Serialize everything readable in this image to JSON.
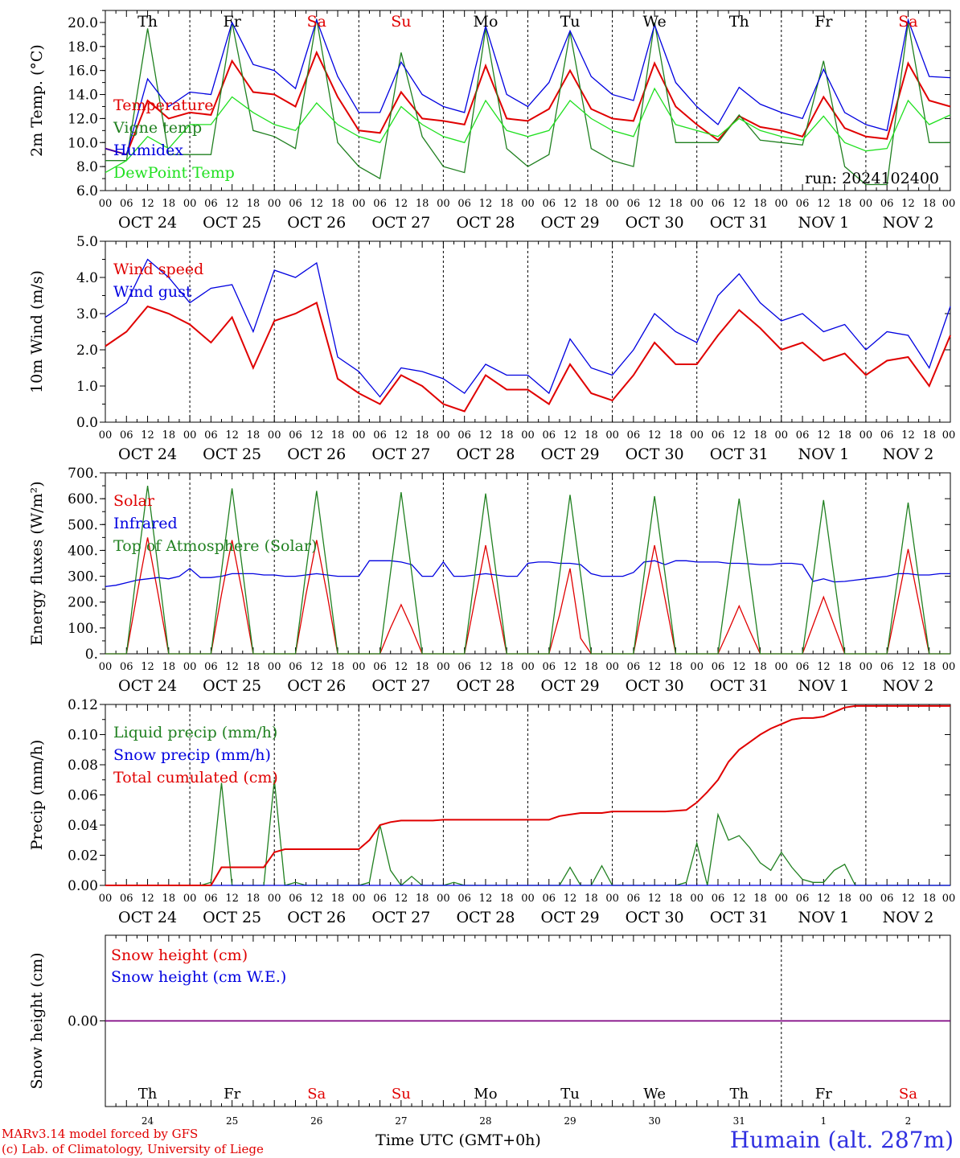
{
  "days": [
    "Th",
    "Fr",
    "Sa",
    "Su",
    "Mo",
    "Tu",
    "We",
    "Th",
    "Fr",
    "Sa"
  ],
  "day_colors": [
    "#000000",
    "#000000",
    "#e00000",
    "#e00000",
    "#000000",
    "#000000",
    "#000000",
    "#000000",
    "#000000",
    "#e00000"
  ],
  "dates": [
    "OCT 24",
    "OCT 25",
    "OCT 26",
    "OCT 27",
    "OCT 28",
    "OCT 29",
    "OCT 30",
    "OCT 31",
    "NOV  1",
    "NOV  2"
  ],
  "day_numbers": [
    "24",
    "25",
    "26",
    "27",
    "28",
    "29",
    "30",
    "31",
    "1",
    "2"
  ],
  "hour_ticks": [
    "00",
    "06",
    "12",
    "18"
  ],
  "hour_tick_end": "00",
  "run_label": "run: 2024102400",
  "footer": {
    "model": "MARv3.14 model forced by GFS",
    "lab": "(c) Lab. of Climatology, University of Liege",
    "time_label": "Time UTC (GMT+0h)",
    "station": "Humain (alt. 287m)"
  },
  "colors": {
    "red": "#e00000",
    "green": "#208020",
    "blue": "#0000e0",
    "lightgreen": "#20e020",
    "purple": "#800080"
  },
  "chart_data": [
    {
      "type": "line",
      "ylabel": "2m Temp. (°C)",
      "ylim": [
        6,
        21
      ],
      "yticks": [
        "6.0",
        "8.0",
        "10.0",
        "12.0",
        "14.0",
        "16.0",
        "18.0",
        "20.0"
      ],
      "hours": [
        0,
        6,
        12,
        18,
        24,
        30,
        36,
        42,
        48,
        54,
        60,
        66,
        72,
        78,
        84,
        90,
        96,
        102,
        108,
        114,
        120,
        126,
        132,
        138,
        144,
        150,
        156,
        162,
        168,
        174,
        180,
        186,
        192,
        198,
        204,
        210,
        216,
        222,
        228,
        234,
        240
      ],
      "series": [
        {
          "name": "Temperature",
          "color": "#e00000",
          "values": [
            9.5,
            9.0,
            13.5,
            12.0,
            12.5,
            12.3,
            16.8,
            14.2,
            14.0,
            13.0,
            17.5,
            13.8,
            11.0,
            10.8,
            14.2,
            12.0,
            11.8,
            11.5,
            16.4,
            12.0,
            11.8,
            12.8,
            16.0,
            12.8,
            12.0,
            11.8,
            16.6,
            13.0,
            11.5,
            10.2,
            12.2,
            11.3,
            11.0,
            10.5,
            13.8,
            11.2,
            10.5,
            10.3,
            16.6,
            13.5,
            13.0
          ]
        },
        {
          "name": "Vigne temp",
          "color": "#208020",
          "values": [
            8.5,
            8.5,
            19.5,
            9.0,
            9.0,
            9.0,
            20.0,
            11.0,
            10.5,
            9.5,
            20.3,
            10.0,
            8.0,
            7.0,
            17.5,
            10.5,
            8.0,
            7.5,
            19.5,
            9.5,
            8.0,
            9.0,
            19.2,
            9.5,
            8.5,
            8.0,
            20.0,
            10.0,
            10.0,
            10.0,
            12.3,
            10.2,
            10.0,
            9.8,
            16.8,
            8.0,
            6.5,
            6.5,
            20.0,
            10.0,
            10.0
          ]
        },
        {
          "name": "Humidex",
          "color": "#0000e0",
          "values": [
            9.5,
            9.0,
            15.3,
            13.0,
            14.2,
            14.0,
            20.0,
            16.5,
            16.0,
            14.5,
            20.2,
            15.5,
            12.5,
            12.5,
            16.7,
            14.0,
            13.0,
            12.5,
            19.7,
            14.0,
            13.0,
            15.0,
            19.3,
            15.5,
            14.0,
            13.5,
            19.8,
            15.0,
            13.0,
            11.5,
            14.6,
            13.2,
            12.5,
            12.0,
            16.1,
            12.5,
            11.5,
            11.0,
            20.2,
            15.5,
            15.4
          ]
        },
        {
          "name": "DewPoint Temp",
          "color": "#20e020",
          "values": [
            7.5,
            8.5,
            10.5,
            9.5,
            11.5,
            11.5,
            13.8,
            12.5,
            11.5,
            11.0,
            13.3,
            11.5,
            10.5,
            10.0,
            13.0,
            11.5,
            10.5,
            10.0,
            13.5,
            11.0,
            10.5,
            11.0,
            13.5,
            12.0,
            11.0,
            10.5,
            14.5,
            11.5,
            11.0,
            10.5,
            12.0,
            11.0,
            10.5,
            10.2,
            12.2,
            10.0,
            9.3,
            9.5,
            13.5,
            11.5,
            12.3
          ]
        }
      ]
    },
    {
      "type": "line",
      "ylabel": "10m Wind (m/s)",
      "ylim": [
        0,
        5
      ],
      "yticks": [
        "0.0",
        "1.0",
        "2.0",
        "3.0",
        "4.0",
        "5.0"
      ],
      "hours": [
        0,
        6,
        12,
        18,
        24,
        30,
        36,
        42,
        48,
        54,
        60,
        66,
        72,
        78,
        84,
        90,
        96,
        102,
        108,
        114,
        120,
        126,
        132,
        138,
        144,
        150,
        156,
        162,
        168,
        174,
        180,
        186,
        192,
        198,
        204,
        210,
        216,
        222,
        228,
        234,
        240
      ],
      "series": [
        {
          "name": "Wind speed",
          "color": "#e00000",
          "values": [
            2.1,
            2.5,
            3.2,
            3.0,
            2.7,
            2.2,
            2.9,
            1.5,
            2.8,
            3.0,
            3.3,
            1.2,
            0.8,
            0.5,
            1.3,
            1.0,
            0.5,
            0.3,
            1.3,
            0.9,
            0.9,
            0.5,
            1.6,
            0.8,
            0.6,
            1.3,
            2.2,
            1.6,
            1.6,
            2.4,
            3.1,
            2.6,
            2.0,
            2.2,
            1.7,
            1.9,
            1.3,
            1.7,
            1.8,
            1.0,
            2.4
          ]
        },
        {
          "name": "Wind gust",
          "color": "#0000e0",
          "values": [
            2.9,
            3.3,
            4.5,
            4.0,
            3.3,
            3.7,
            3.8,
            2.5,
            4.2,
            4.0,
            4.4,
            1.8,
            1.4,
            0.7,
            1.5,
            1.4,
            1.2,
            0.8,
            1.6,
            1.3,
            1.3,
            0.8,
            2.3,
            1.5,
            1.3,
            2.0,
            3.0,
            2.5,
            2.2,
            3.5,
            4.1,
            3.3,
            2.8,
            3.0,
            2.5,
            2.7,
            2.0,
            2.5,
            2.4,
            1.5,
            3.2
          ]
        }
      ]
    },
    {
      "type": "line",
      "ylabel": "Energy fluxes (W/m²)",
      "ylim": [
        0,
        700
      ],
      "yticks": [
        "0.",
        "100.",
        "200.",
        "300.",
        "400.",
        "500.",
        "600.",
        "700."
      ],
      "hours": [
        0,
        3,
        6,
        9,
        12,
        15,
        18,
        21,
        24,
        27,
        30,
        33,
        36,
        39,
        42,
        45,
        48,
        51,
        54,
        57,
        60,
        63,
        66,
        69,
        72,
        75,
        78,
        81,
        84,
        87,
        90,
        93,
        96,
        99,
        102,
        105,
        108,
        111,
        114,
        117,
        120,
        123,
        126,
        129,
        132,
        135,
        138,
        141,
        144,
        147,
        150,
        153,
        156,
        159,
        162,
        165,
        168,
        171,
        174,
        177,
        180,
        183,
        186,
        189,
        192,
        195,
        198,
        201,
        204,
        207,
        210,
        213,
        216,
        219,
        222,
        225,
        228,
        231,
        234,
        237,
        240
      ],
      "series": [
        {
          "name": "Solar",
          "color": "#e00000",
          "values": [
            0,
            0,
            0,
            230,
            450,
            230,
            0,
            0,
            0,
            0,
            0,
            230,
            440,
            230,
            0,
            0,
            0,
            0,
            0,
            230,
            440,
            230,
            0,
            0,
            0,
            0,
            0,
            100,
            190,
            100,
            0,
            0,
            0,
            0,
            0,
            210,
            420,
            210,
            0,
            0,
            0,
            0,
            0,
            150,
            330,
            60,
            0,
            0,
            0,
            0,
            0,
            210,
            420,
            210,
            0,
            0,
            0,
            0,
            0,
            90,
            185,
            90,
            0,
            0,
            0,
            0,
            0,
            110,
            220,
            110,
            0,
            0,
            0,
            0,
            0,
            200,
            405,
            200,
            0,
            0,
            0
          ]
        },
        {
          "name": "Infrared",
          "color": "#0000e0",
          "values": [
            260,
            265,
            275,
            285,
            290,
            295,
            290,
            300,
            330,
            295,
            295,
            300,
            310,
            310,
            310,
            305,
            305,
            300,
            300,
            305,
            310,
            305,
            300,
            300,
            300,
            360,
            360,
            360,
            355,
            345,
            300,
            300,
            355,
            300,
            300,
            305,
            310,
            305,
            300,
            300,
            350,
            355,
            355,
            350,
            350,
            345,
            310,
            300,
            300,
            300,
            315,
            355,
            360,
            345,
            360,
            360,
            355,
            355,
            355,
            350,
            350,
            348,
            345,
            345,
            350,
            350,
            345,
            280,
            290,
            278,
            280,
            285,
            290,
            295,
            300,
            310,
            310,
            305,
            305,
            310,
            310
          ]
        },
        {
          "name": "Top of Atmosphere (Solar)",
          "color": "#208020",
          "values": [
            0,
            0,
            0,
            330,
            650,
            330,
            0,
            0,
            0,
            0,
            0,
            320,
            640,
            320,
            0,
            0,
            0,
            0,
            0,
            320,
            630,
            320,
            0,
            0,
            0,
            0,
            0,
            315,
            625,
            315,
            0,
            0,
            0,
            0,
            0,
            310,
            620,
            310,
            0,
            0,
            0,
            0,
            0,
            305,
            615,
            305,
            0,
            0,
            0,
            0,
            0,
            305,
            610,
            305,
            0,
            0,
            0,
            0,
            0,
            300,
            600,
            300,
            0,
            0,
            0,
            0,
            0,
            295,
            595,
            295,
            0,
            0,
            0,
            0,
            0,
            290,
            585,
            290,
            0,
            0,
            0
          ]
        }
      ]
    },
    {
      "type": "line",
      "ylabel": "Precip (mm/h)",
      "ylim": [
        0,
        0.12
      ],
      "yticks": [
        "0.00",
        "0.02",
        "0.04",
        "0.06",
        "0.08",
        "0.10",
        "0.12"
      ],
      "hours": [
        0,
        3,
        6,
        9,
        12,
        15,
        18,
        21,
        24,
        27,
        30,
        33,
        36,
        39,
        42,
        45,
        48,
        51,
        54,
        57,
        60,
        63,
        66,
        69,
        72,
        75,
        78,
        81,
        84,
        87,
        90,
        93,
        96,
        99,
        102,
        105,
        108,
        111,
        114,
        117,
        120,
        123,
        126,
        129,
        132,
        135,
        138,
        141,
        144,
        147,
        150,
        153,
        156,
        159,
        162,
        165,
        168,
        171,
        174,
        177,
        180,
        183,
        186,
        189,
        192,
        195,
        198,
        201,
        204,
        207,
        210,
        213,
        216,
        219,
        222,
        225,
        228,
        231,
        234,
        237,
        240
      ],
      "series": [
        {
          "name": "Liquid precip (mm/h)",
          "color": "#208020",
          "values": [
            0,
            0,
            0,
            0,
            0,
            0,
            0,
            0,
            0,
            0,
            0.002,
            0.068,
            0,
            0,
            0,
            0,
            0.07,
            0,
            0.002,
            0,
            0,
            0,
            0,
            0,
            0,
            0.002,
            0.04,
            0.01,
            0,
            0.006,
            0,
            0,
            0,
            0.002,
            0,
            0,
            0,
            0,
            0,
            0,
            0,
            0,
            0,
            0,
            0.012,
            0,
            0,
            0.013,
            0,
            0,
            0,
            0,
            0,
            0,
            0,
            0.002,
            0.028,
            0,
            0.047,
            0.03,
            0.033,
            0.025,
            0.015,
            0.01,
            0.022,
            0.012,
            0.004,
            0.002,
            0.002,
            0.01,
            0.014,
            0,
            0,
            0,
            0,
            0,
            0,
            0,
            0,
            0,
            0
          ]
        },
        {
          "name": "Snow precip (mm/h)",
          "color": "#0000e0",
          "values": [
            0,
            0,
            0,
            0,
            0,
            0,
            0,
            0,
            0,
            0,
            0,
            0,
            0,
            0,
            0,
            0,
            0,
            0,
            0,
            0,
            0,
            0,
            0,
            0,
            0,
            0,
            0,
            0,
            0,
            0,
            0,
            0,
            0,
            0,
            0,
            0,
            0,
            0,
            0,
            0,
            0,
            0,
            0,
            0,
            0,
            0,
            0,
            0,
            0,
            0,
            0,
            0,
            0,
            0,
            0,
            0,
            0,
            0,
            0,
            0,
            0,
            0,
            0,
            0,
            0,
            0,
            0,
            0,
            0,
            0,
            0,
            0,
            0,
            0,
            0,
            0,
            0,
            0,
            0,
            0,
            0
          ]
        },
        {
          "name": "Total cumulated (cm)",
          "color": "#e00000",
          "values": [
            0,
            0,
            0,
            0,
            0,
            0,
            0,
            0,
            0,
            0,
            0,
            0.012,
            0.012,
            0.012,
            0.012,
            0.012,
            0.022,
            0.024,
            0.024,
            0.024,
            0.024,
            0.024,
            0.024,
            0.024,
            0.024,
            0.03,
            0.04,
            0.042,
            0.043,
            0.043,
            0.043,
            0.043,
            0.0435,
            0.0435,
            0.0435,
            0.0435,
            0.0435,
            0.0435,
            0.0435,
            0.0435,
            0.0435,
            0.0435,
            0.0435,
            0.046,
            0.047,
            0.048,
            0.048,
            0.048,
            0.049,
            0.049,
            0.049,
            0.049,
            0.049,
            0.049,
            0.0495,
            0.05,
            0.055,
            0.062,
            0.07,
            0.082,
            0.09,
            0.095,
            0.1,
            0.104,
            0.107,
            0.11,
            0.111,
            0.111,
            0.112,
            0.115,
            0.118,
            0.119,
            0.119,
            0.119,
            0.119,
            0.119,
            0.119,
            0.119,
            0.119,
            0.119,
            0.119
          ]
        }
      ]
    },
    {
      "type": "line",
      "ylabel": "Snow height (cm)",
      "ylim": [
        -1,
        1
      ],
      "yticks": [
        "0.00"
      ],
      "hours": [
        0,
        240
      ],
      "series": [
        {
          "name": "Snow height (cm)",
          "color": "#e00000",
          "values": [
            0,
            0
          ]
        },
        {
          "name": "Snow height (cm W.E.)",
          "color": "#0000e0",
          "values": [
            0,
            0
          ]
        }
      ]
    }
  ]
}
